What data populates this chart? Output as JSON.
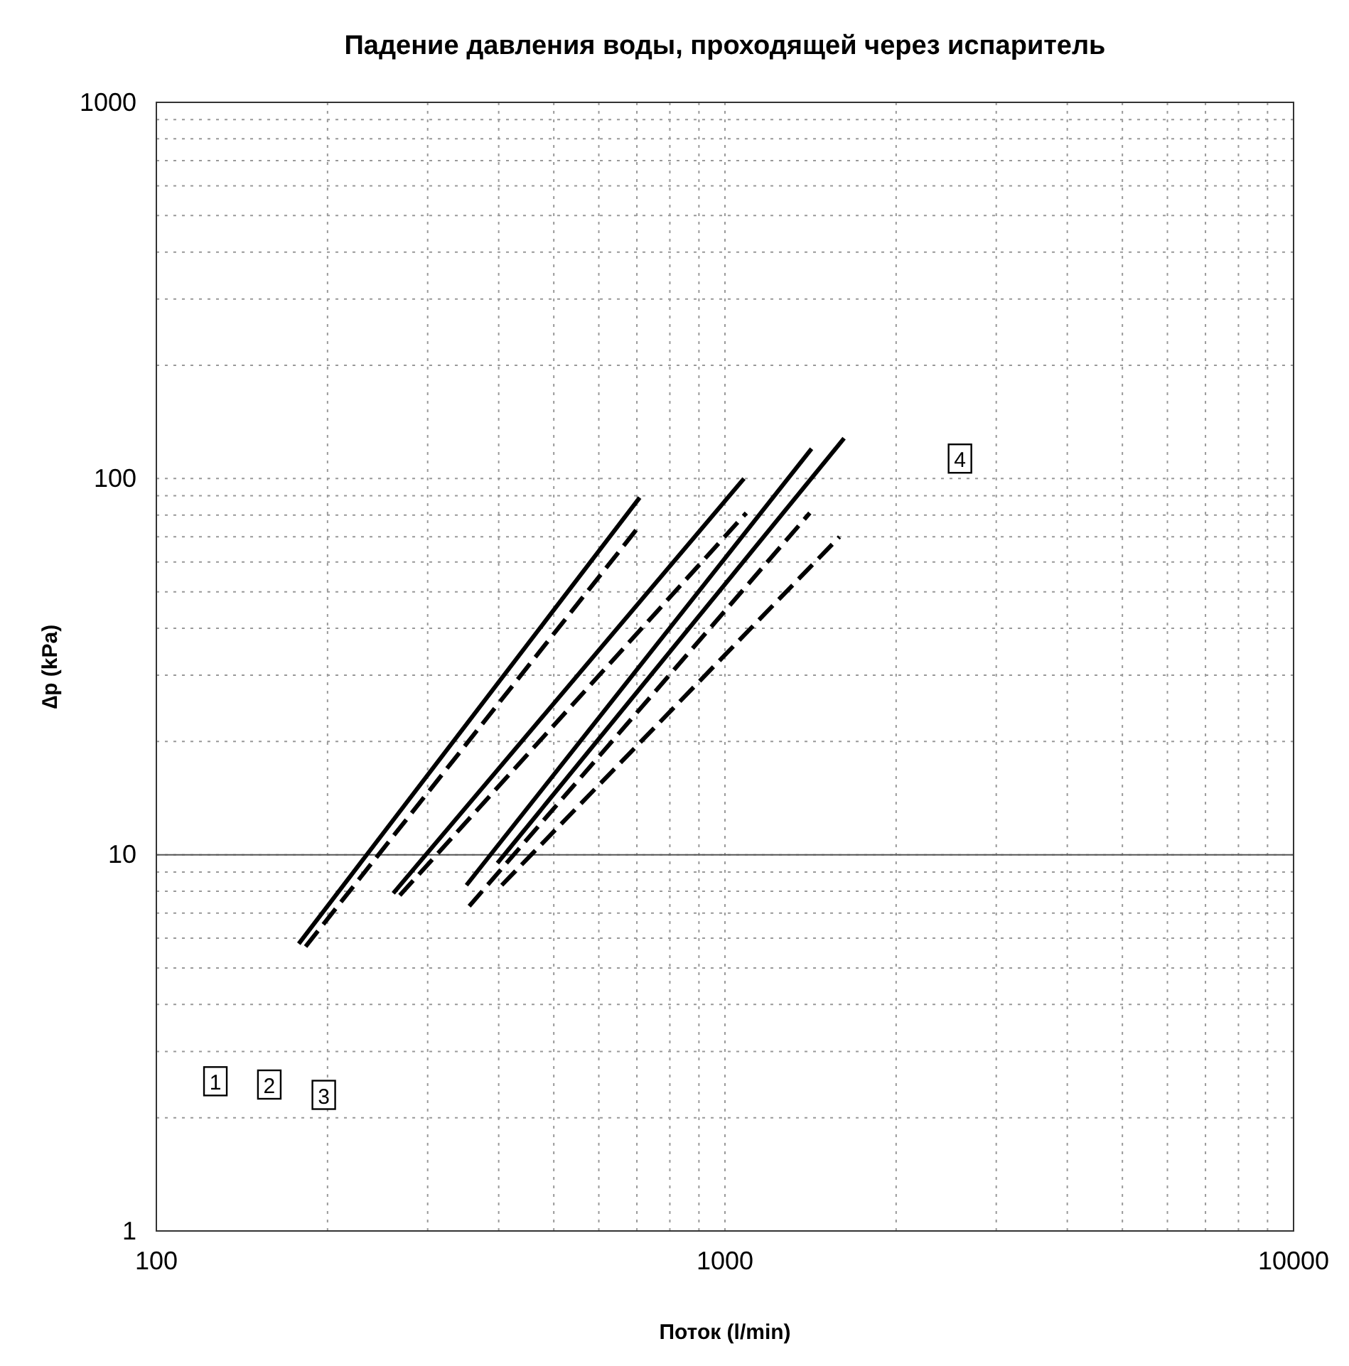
{
  "chart_data": {
    "type": "line",
    "title": "Падение давления воды, проходящей через испаритель",
    "xlabel": "Поток (l/min)",
    "ylabel": "∆p (kPa)",
    "log": "xy",
    "grid": true,
    "marker": "none",
    "xlim": [
      100,
      10000
    ],
    "ylim": [
      1,
      1000
    ],
    "xticks": [
      100,
      {
        "value": 200,
        "label": null
      },
      {
        "value": 300,
        "label": null
      },
      {
        "value": 400,
        "label": null
      },
      {
        "value": 500,
        "label": null
      },
      {
        "value": 600,
        "label": null
      },
      {
        "value": 700,
        "label": null
      },
      {
        "value": 800,
        "label": null
      },
      {
        "value": 900,
        "label": null
      },
      1000,
      {
        "value": 2000,
        "label": null
      },
      {
        "value": 3000,
        "label": null
      },
      {
        "value": 4000,
        "label": null
      },
      {
        "value": 5000,
        "label": null
      },
      {
        "value": 6000,
        "label": null
      },
      {
        "value": 7000,
        "label": null
      },
      {
        "value": 8000,
        "label": null
      },
      {
        "value": 9000,
        "label": null
      },
      10000
    ],
    "yticks": [
      1,
      {
        "value": 2,
        "label": null
      },
      {
        "value": 3,
        "label": null
      },
      {
        "value": 4,
        "label": null
      },
      {
        "value": 5,
        "label": null
      },
      {
        "value": 6,
        "label": null
      },
      {
        "value": 7,
        "label": null
      },
      {
        "value": 8,
        "label": null
      },
      {
        "value": 9,
        "label": null
      },
      10,
      {
        "value": 20,
        "label": null
      },
      {
        "value": 30,
        "label": null
      },
      {
        "value": 40,
        "label": null
      },
      {
        "value": 50,
        "label": null
      },
      {
        "value": 60,
        "label": null
      },
      {
        "value": 70,
        "label": null
      },
      {
        "value": 80,
        "label": null
      },
      {
        "value": 90,
        "label": null
      },
      100,
      {
        "value": 200,
        "label": null
      },
      {
        "value": 300,
        "label": null
      },
      {
        "value": 400,
        "label": null
      },
      {
        "value": 500,
        "label": null
      },
      {
        "value": 600,
        "label": null
      },
      {
        "value": 700,
        "label": null
      },
      {
        "value": 800,
        "label": null
      },
      {
        "value": 900,
        "label": null
      },
      1000
    ],
    "ref_lines": [
      {
        "axis": "y",
        "value": 10,
        "color": "#555555",
        "line_style": "solid"
      }
    ],
    "series": [
      {
        "color": "#000000",
        "line_style": "solid",
        "x": [
          178,
          708
        ],
        "values": [
          5.8,
          89
        ]
      },
      {
        "color": "#000000",
        "line_style": "dashed",
        "x": [
          183,
          708
        ],
        "values": [
          5.7,
          75
        ]
      },
      {
        "color": "#000000",
        "line_style": "solid",
        "x": [
          261,
          1080
        ],
        "values": [
          7.9,
          100
        ]
      },
      {
        "color": "#000000",
        "line_style": "dashed",
        "x": [
          268,
          1090
        ],
        "values": [
          7.8,
          81
        ]
      },
      {
        "color": "#000000",
        "line_style": "solid",
        "x": [
          351,
          1420
        ],
        "values": [
          8.3,
          120
        ]
      },
      {
        "color": "#000000",
        "line_style": "dashed",
        "x": [
          355,
          1410
        ],
        "values": [
          7.3,
          81
        ]
      },
      {
        "color": "#000000",
        "line_style": "solid",
        "x": [
          398,
          1620
        ],
        "values": [
          9.5,
          128
        ]
      },
      {
        "color": "#000000",
        "line_style": "dashed",
        "x": [
          405,
          1590
        ],
        "values": [
          8.3,
          70
        ]
      }
    ],
    "annotations": [
      {
        "text": "1",
        "x": 127,
        "y": 2.5
      },
      {
        "text": "2",
        "x": 158,
        "y": 2.45
      },
      {
        "text": "3",
        "x": 197,
        "y": 2.3
      },
      {
        "text": "4",
        "x": 2590,
        "y": 113
      }
    ]
  }
}
